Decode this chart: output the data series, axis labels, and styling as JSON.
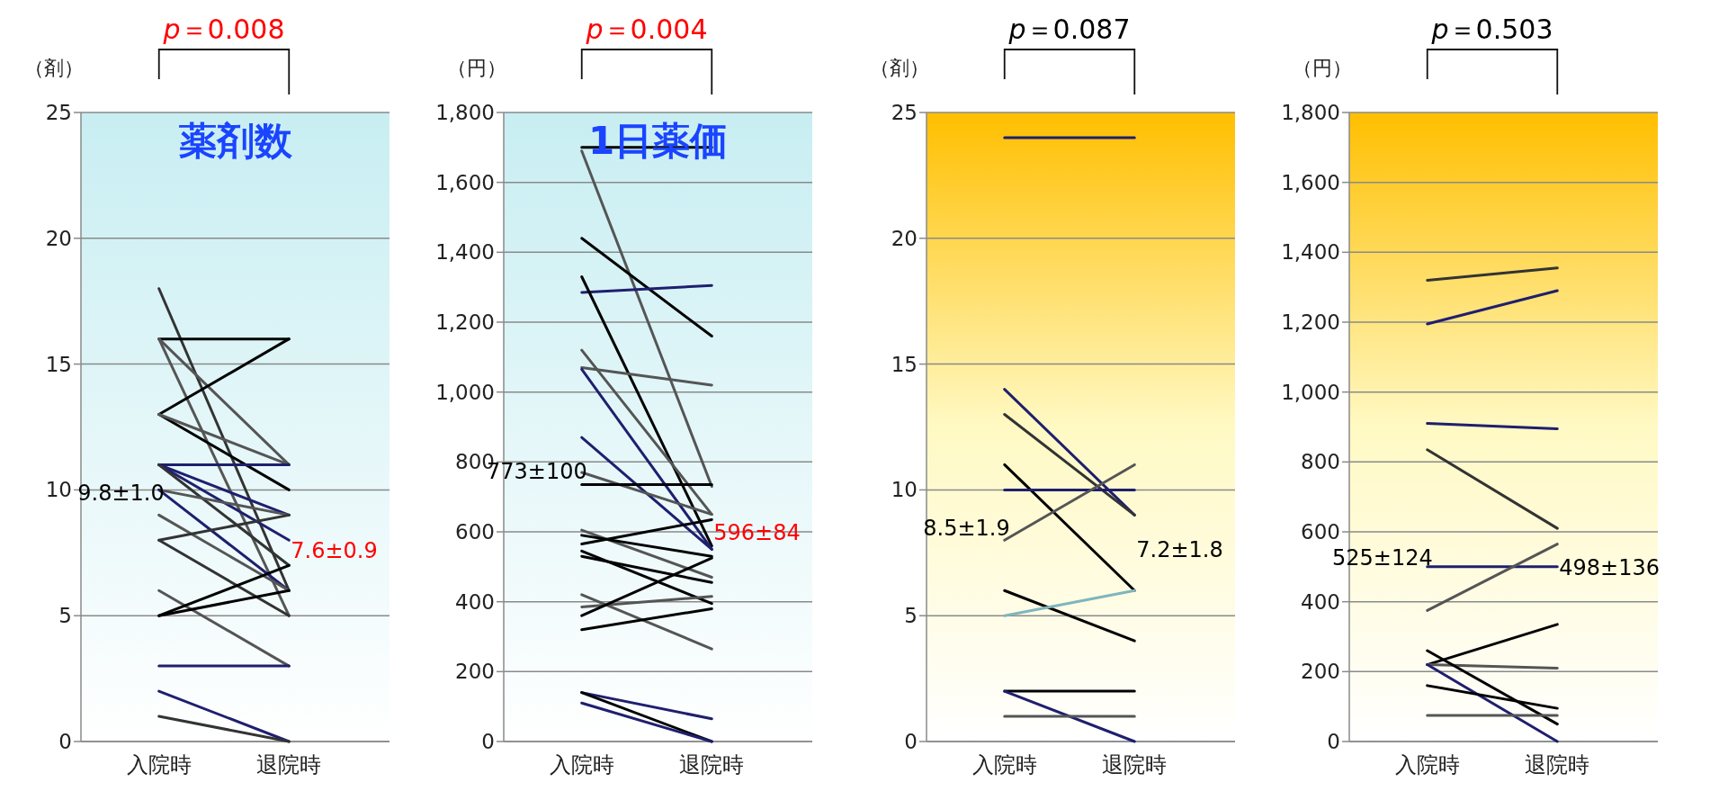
{
  "chart_data": [
    {
      "type": "line",
      "title": "薬剤数",
      "ylabel": "（剤）",
      "categories": [
        "入院時",
        "退院時"
      ],
      "ylim": [
        0,
        25
      ],
      "yticks": [
        0,
        5,
        10,
        15,
        20,
        25
      ],
      "grid": "y",
      "marker": "none",
      "line_style": "solid",
      "annotations": [
        "p＝0.008",
        "9.8±1.0",
        "7.6±0.9"
      ],
      "series": [
        {
          "color": "#333333",
          "values": [
            18,
            6
          ]
        },
        {
          "color": "#000000",
          "values": [
            16,
            16
          ]
        },
        {
          "color": "#555555",
          "values": [
            16,
            11
          ]
        },
        {
          "color": "#555555",
          "values": [
            16,
            5
          ]
        },
        {
          "color": "#000000",
          "values": [
            13,
            16
          ]
        },
        {
          "color": "#000000",
          "values": [
            13,
            10
          ]
        },
        {
          "color": "#555555",
          "values": [
            13,
            11
          ]
        },
        {
          "color": "#1f1f6e",
          "values": [
            11,
            11
          ]
        },
        {
          "color": "#1f1f6e",
          "values": [
            11,
            9
          ]
        },
        {
          "color": "#1f1f6e",
          "values": [
            11,
            8
          ]
        },
        {
          "color": "#333333",
          "values": [
            11,
            7
          ]
        },
        {
          "color": "#555555",
          "values": [
            10,
            9
          ]
        },
        {
          "color": "#1f1f6e",
          "values": [
            10,
            6
          ]
        },
        {
          "color": "#555555",
          "values": [
            9,
            6
          ]
        },
        {
          "color": "#333333",
          "values": [
            8,
            9
          ]
        },
        {
          "color": "#333333",
          "values": [
            8,
            5
          ]
        },
        {
          "color": "#555555",
          "values": [
            6,
            3
          ]
        },
        {
          "color": "#000000",
          "values": [
            5,
            7
          ]
        },
        {
          "color": "#000000",
          "values": [
            5,
            6
          ]
        },
        {
          "color": "#1f1f6e",
          "values": [
            3,
            3
          ]
        },
        {
          "color": "#1f1f6e",
          "values": [
            2,
            0
          ]
        },
        {
          "color": "#333333",
          "values": [
            1,
            0
          ]
        }
      ]
    },
    {
      "type": "line",
      "title": "1日薬価",
      "ylabel": "（円）",
      "categories": [
        "入院時",
        "退院時"
      ],
      "ylim": [
        0,
        1800
      ],
      "yticks": [
        0,
        200,
        400,
        600,
        {
          "value": 800,
          "label": "800"
        },
        {
          "value": 1000,
          "label": "1,000"
        },
        {
          "value": 1200,
          "label": "1,200"
        },
        {
          "value": 1400,
          "label": "1,400"
        },
        {
          "value": 1600,
          "label": "1,600"
        },
        {
          "value": 1800,
          "label": "1,800"
        }
      ],
      "grid": "y",
      "marker": "none",
      "line_style": "solid",
      "annotations": [
        "p＝0.004",
        "773±100",
        "596±84"
      ],
      "series": [
        {
          "color": "#000000",
          "values": [
            1700,
            1700
          ]
        },
        {
          "color": "#555555",
          "values": [
            1690,
            730
          ]
        },
        {
          "color": "#000000",
          "values": [
            1440,
            1160
          ]
        },
        {
          "color": "#1f1f6e",
          "values": [
            1285,
            1305
          ]
        },
        {
          "color": "#000000",
          "values": [
            1330,
            560
          ]
        },
        {
          "color": "#555555",
          "values": [
            1120,
            650
          ]
        },
        {
          "color": "#555555",
          "values": [
            1070,
            1020
          ]
        },
        {
          "color": "#1f1f6e",
          "values": [
            1065,
            550
          ]
        },
        {
          "color": "#1f1f6e",
          "values": [
            870,
            550
          ]
        },
        {
          "color": "#555555",
          "values": [
            770,
            650
          ]
        },
        {
          "color": "#000000",
          "values": [
            735,
            735
          ]
        },
        {
          "color": "#000000",
          "values": [
            565,
            635
          ]
        },
        {
          "color": "#555555",
          "values": [
            605,
            470
          ]
        },
        {
          "color": "#000000",
          "values": [
            590,
            530
          ]
        },
        {
          "color": "#000000",
          "values": [
            545,
            395
          ]
        },
        {
          "color": "#000000",
          "values": [
            530,
            455
          ]
        },
        {
          "color": "#555555",
          "values": [
            420,
            265
          ]
        },
        {
          "color": "#555555",
          "values": [
            385,
            415
          ]
        },
        {
          "color": "#000000",
          "values": [
            360,
            525
          ]
        },
        {
          "color": "#000000",
          "values": [
            320,
            380
          ]
        },
        {
          "color": "#1f1f6e",
          "values": [
            140,
            65
          ]
        },
        {
          "color": "#000000",
          "values": [
            140,
            0
          ]
        },
        {
          "color": "#1f1f6e",
          "values": [
            110,
            0
          ]
        }
      ]
    },
    {
      "type": "line",
      "ylabel": "（剤）",
      "categories": [
        "入院時",
        "退院時"
      ],
      "ylim": [
        0,
        25
      ],
      "yticks": [
        0,
        5,
        10,
        15,
        20,
        25
      ],
      "grid": "y",
      "marker": "none",
      "line_style": "solid",
      "annotations": [
        "p＝0.087",
        "8.5±1.9",
        "7.2±1.8"
      ],
      "series": [
        {
          "color": "#1f1f6e",
          "values": [
            24,
            24
          ]
        },
        {
          "color": "#1f1f6e",
          "values": [
            14,
            9
          ]
        },
        {
          "color": "#333333",
          "values": [
            13,
            9
          ]
        },
        {
          "color": "#000000",
          "values": [
            11,
            6
          ]
        },
        {
          "color": "#1f1f6e",
          "values": [
            10,
            10
          ]
        },
        {
          "color": "#555555",
          "values": [
            8,
            11
          ]
        },
        {
          "color": "#000000",
          "values": [
            6,
            4
          ]
        },
        {
          "color": "#7fb5bd",
          "values": [
            5,
            6
          ]
        },
        {
          "color": "#000000",
          "values": [
            2,
            2
          ]
        },
        {
          "color": "#1f1f6e",
          "values": [
            2,
            0
          ]
        },
        {
          "color": "#555555",
          "values": [
            1,
            1
          ]
        }
      ]
    },
    {
      "type": "line",
      "ylabel": "（円）",
      "categories": [
        "入院時",
        "退院時"
      ],
      "ylim": [
        0,
        1800
      ],
      "yticks": [
        0,
        200,
        400,
        600,
        800,
        {
          "value": 1000,
          "label": "1,000"
        },
        {
          "value": 1200,
          "label": "1,200"
        },
        {
          "value": 1400,
          "label": "1,400"
        },
        {
          "value": 1600,
          "label": "1,600"
        },
        {
          "value": 1800,
          "label": "1,800"
        }
      ],
      "grid": "y",
      "marker": "none",
      "line_style": "solid",
      "annotations": [
        "p＝0.503",
        "525±124",
        "498±136"
      ],
      "series": [
        {
          "color": "#333333",
          "values": [
            1320,
            1355
          ]
        },
        {
          "color": "#1f1f6e",
          "values": [
            1195,
            1290
          ]
        },
        {
          "color": "#1f1f6e",
          "values": [
            910,
            895
          ]
        },
        {
          "color": "#333333",
          "values": [
            835,
            610
          ]
        },
        {
          "color": "#1f1f6e",
          "values": [
            500,
            500
          ]
        },
        {
          "color": "#555555",
          "values": [
            375,
            565
          ]
        },
        {
          "color": "#000000",
          "values": [
            220,
            335
          ]
        },
        {
          "color": "#555555",
          "values": [
            220,
            210
          ]
        },
        {
          "color": "#000000",
          "values": [
            260,
            50
          ]
        },
        {
          "color": "#1f1f6e",
          "values": [
            220,
            0
          ]
        },
        {
          "color": "#000000",
          "values": [
            160,
            95
          ]
        },
        {
          "color": "#555555",
          "values": [
            75,
            75
          ]
        }
      ]
    }
  ]
}
